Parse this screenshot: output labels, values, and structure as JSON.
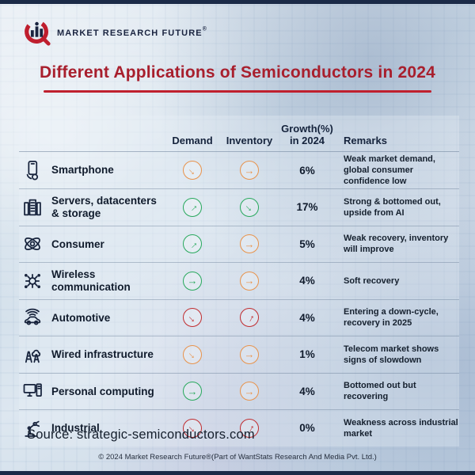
{
  "brand": {
    "name": "MARKET RESEARCH FUTURE",
    "reg": "®"
  },
  "title": "Different Applications of Semiconductors in 2024",
  "table": {
    "headers": {
      "demand": "Demand",
      "inventory": "Inventory",
      "growth_line1": "Growth(%)",
      "growth_line2": "in 2024",
      "remarks": "Remarks"
    },
    "rows": [
      {
        "icon": "smartphone-icon",
        "label": "Smartphone",
        "demand": {
          "direction": "down-right",
          "tone": "neutral"
        },
        "inventory": {
          "direction": "right",
          "tone": "neutral"
        },
        "growth": "6%",
        "remarks": "Weak market demand, global consumer confidence low"
      },
      {
        "icon": "servers-icon",
        "label": "Servers, datacenters & storage",
        "demand": {
          "direction": "up-right",
          "tone": "positive"
        },
        "inventory": {
          "direction": "down-right",
          "tone": "positive"
        },
        "growth": "17%",
        "remarks": "Strong & bottomed out, upside from AI"
      },
      {
        "icon": "consumer-icon",
        "label": "Consumer",
        "demand": {
          "direction": "up-right",
          "tone": "positive"
        },
        "inventory": {
          "direction": "right",
          "tone": "neutral"
        },
        "growth": "5%",
        "remarks": "Weak recovery, inventory will improve"
      },
      {
        "icon": "wireless-icon",
        "label": "Wireless communication",
        "demand": {
          "direction": "right",
          "tone": "positive"
        },
        "inventory": {
          "direction": "right",
          "tone": "neutral"
        },
        "growth": "4%",
        "remarks": "Soft recovery"
      },
      {
        "icon": "automotive-icon",
        "label": "Automotive",
        "demand": {
          "direction": "down-right",
          "tone": "negative"
        },
        "inventory": {
          "direction": "steep-up",
          "tone": "negative"
        },
        "growth": "4%",
        "remarks": "Entering a down-cycle, recovery in 2025"
      },
      {
        "icon": "wired-infrastructure-icon",
        "label": "Wired infrastructure",
        "demand": {
          "direction": "down-right",
          "tone": "neutral"
        },
        "inventory": {
          "direction": "right",
          "tone": "neutral"
        },
        "growth": "1%",
        "remarks": "Telecom market shows signs of slowdown"
      },
      {
        "icon": "personal-computing-icon",
        "label": "Personal computing",
        "demand": {
          "direction": "right",
          "tone": "positive"
        },
        "inventory": {
          "direction": "right",
          "tone": "neutral"
        },
        "growth": "4%",
        "remarks": "Bottomed out but recovering"
      },
      {
        "icon": "industrial-icon",
        "label": "Industrial",
        "demand": {
          "direction": "down-right",
          "tone": "negative"
        },
        "inventory": {
          "direction": "steep-up",
          "tone": "negative"
        },
        "growth": "0%",
        "remarks": "Weakness across industrial market"
      }
    ]
  },
  "status_colors": {
    "positive": "#27a85c",
    "neutral": "#e8924a",
    "negative": "#c02b2e"
  },
  "accent_colors": {
    "title_red": "#a81f2d",
    "rule_red": "#bf202e",
    "navy": "#1a2440"
  },
  "footer": {
    "source": "Source: strategic-semiconductors.com",
    "copyright": "© 2024 Market Research Future®(Part of WantStats Research And Media Pvt. Ltd.)"
  },
  "chart_data": {
    "type": "table",
    "title": "Different Applications of Semiconductors in 2024",
    "columns": [
      "Application",
      "Demand",
      "Inventory",
      "Growth(%) in 2024",
      "Remarks"
    ],
    "rows": [
      [
        "Smartphone",
        "declining",
        "flat",
        "6%",
        "Weak market demand, global consumer confidence low"
      ],
      [
        "Servers, datacenters & storage",
        "rising",
        "declining",
        "17%",
        "Strong & bottomed out, upside from AI"
      ],
      [
        "Consumer",
        "rising",
        "flat",
        "5%",
        "Weak recovery, inventory will improve"
      ],
      [
        "Wireless communication",
        "flat",
        "flat",
        "4%",
        "Soft recovery"
      ],
      [
        "Automotive",
        "declining",
        "rising",
        "4%",
        "Entering a down-cycle, recovery in 2025"
      ],
      [
        "Wired infrastructure",
        "declining",
        "flat",
        "1%",
        "Telecom market shows signs of slowdown"
      ],
      [
        "Personal computing",
        "flat",
        "flat",
        "4%",
        "Bottomed out but recovering"
      ],
      [
        "Industrial",
        "declining",
        "rising",
        "0%",
        "Weakness across industrial market"
      ]
    ],
    "growth_values": [
      6,
      17,
      5,
      4,
      4,
      1,
      4,
      0
    ]
  }
}
